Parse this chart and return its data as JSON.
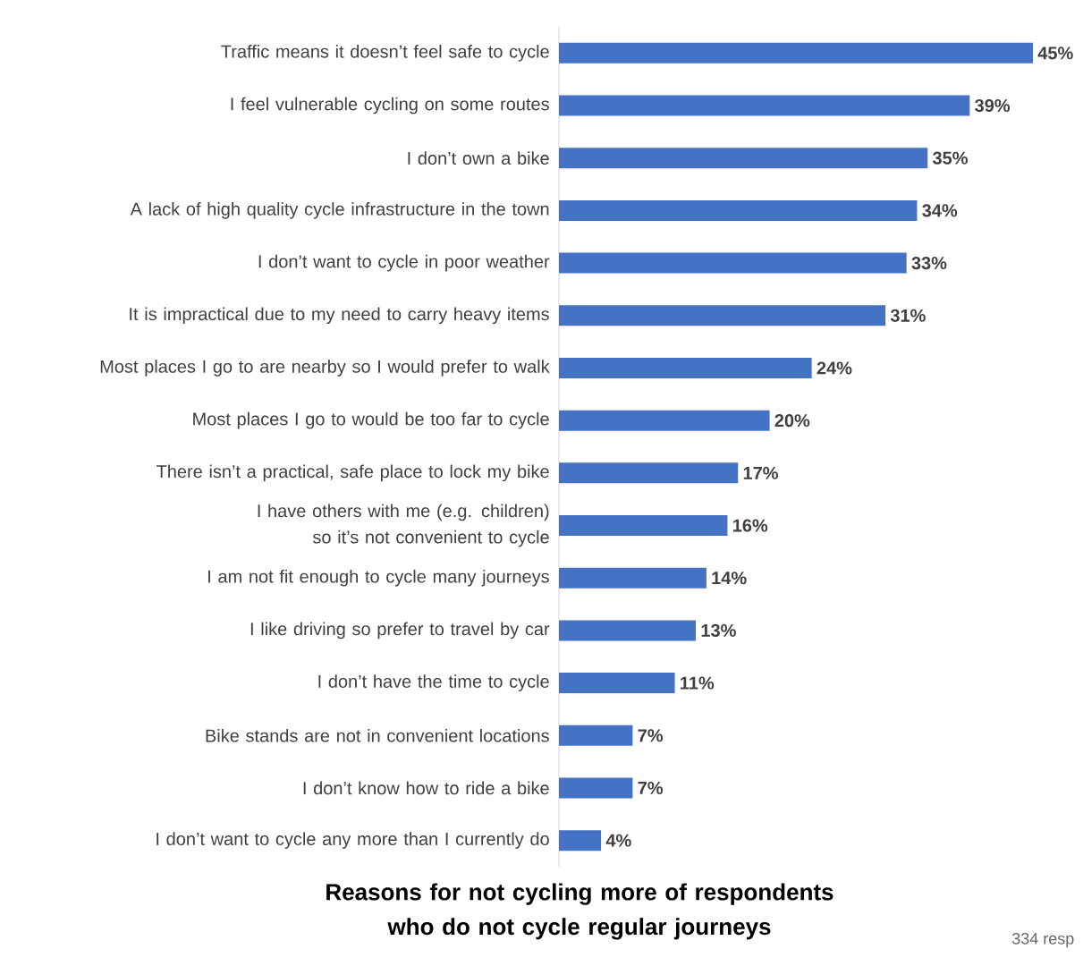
{
  "chart_data": {
    "type": "bar",
    "orientation": "horizontal",
    "title": "Reasons for not cycling more of respondents who do not cycle regular journeys",
    "categories": [
      "Traffic means it doesn’t feel safe to cycle",
      "I feel vulnerable cycling on some routes",
      "I don’t own a bike",
      "A lack of high quality cycle infrastructure in the town",
      "I don’t want to cycle in poor weather",
      "It is impractical due to my need to carry heavy items",
      "Most places I go to are nearby so I  would prefer to walk",
      "Most places I go to would be too far to cycle",
      "There isn’t a practical, safe place to lock my bike",
      "I have others with me (e.g. children) so it’s not convenient to cycle",
      "I am not fit enough to cycle many journeys",
      "I like driving so prefer to travel by car",
      "I don’t have the time to cycle",
      "Bike stands are not in convenient locations",
      "I don’t know how to ride a bike",
      "I don’t want to cycle any more than I currently do"
    ],
    "values": [
      45,
      39,
      35,
      34,
      33,
      31,
      24,
      20,
      17,
      16,
      14,
      13,
      11,
      7,
      7,
      4
    ],
    "value_labels": [
      "45%",
      "39%",
      "35%",
      "34%",
      "33%",
      "31%",
      "24%",
      "20%",
      "17%",
      "16%",
      "14%",
      "13%",
      "11%",
      "7%",
      "7%",
      "4%"
    ],
    "color": "#4472c4",
    "annotations": [
      "334 resp"
    ]
  }
}
